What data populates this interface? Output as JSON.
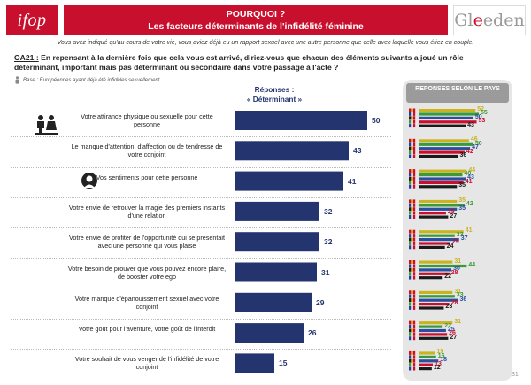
{
  "header": {
    "logo_left": "ifop",
    "title_line1": "POURQUOI ?",
    "title_line2": "Les facteurs déterminants de l'infidélité féminine",
    "logo_right_prefix": "Gl",
    "logo_right_accent": "e",
    "logo_right_suffix": "eden"
  },
  "intro": "Vous avez indiqué qu'au cours de votre vie, vous aviez déjà eu un rapport sexuel avec une autre personne que celle avec laquelle vous étiez en couple.",
  "question": {
    "id": "OA21 :",
    "text": "En repensant à la dernière fois que cela vous est arrivé, diriez-vous que chacun des éléments suivants a joué un rôle déterminant, important mais pas déterminant ou secondaire dans votre passage à l'acte ?"
  },
  "base": "Base : Européennes ayant déjà été infidèles sexuellement",
  "responses_header_line1": "Réponses :",
  "responses_header_line2": "« Déterminant »",
  "panel_header": "REPONSES SELON LE PAYS",
  "page_number": "31",
  "colors": {
    "bar": "#24346f",
    "title_bg": "#c8102e",
    "country": [
      "#c9b41f",
      "#3a9a3a",
      "#2a4ea0",
      "#c8102e",
      "#1a1a1a"
    ]
  },
  "chart_data": {
    "type": "bar",
    "orientation": "horizontal",
    "title": "",
    "categories": [
      "Votre attirance physique ou sexuelle pour cette personne",
      "Le manque d'attention, d'affection ou de tendresse de votre conjoint",
      "Vos sentiments pour cette personne",
      "Votre envie de retrouver la magie des premiers instants d'une relation",
      "Votre envie de profiter de l'opportunité qui se présentait avec une personne qui vous plaise",
      "Votre besoin de prouver que vous pouvez encore plaire, de booster votre ego",
      "Votre manque d'épanouissement sexuel avec votre conjoint",
      "Votre goût pour l'aventure, votre goût de l'interdit",
      "Votre souhait de vous venger de l'infidélité de votre conjoint"
    ],
    "values": [
      50,
      43,
      41,
      32,
      32,
      31,
      29,
      26,
      15
    ],
    "xlim": [
      0,
      50
    ],
    "country_series": [
      {
        "values": [
          52,
          55,
          50,
          53,
          43
        ]
      },
      {
        "values": [
          46,
          50,
          47,
          42,
          36
        ]
      },
      {
        "values": [
          44,
          40,
          43,
          41,
          35
        ]
      },
      {
        "values": [
          35,
          42,
          35,
          25,
          27
        ]
      },
      {
        "values": [
          41,
          33,
          37,
          29,
          24
        ]
      },
      {
        "values": [
          31,
          44,
          30,
          28,
          22
        ]
      },
      {
        "values": [
          31,
          33,
          36,
          28,
          23
        ]
      },
      {
        "values": [
          31,
          22,
          25,
          26,
          27
        ]
      },
      {
        "values": [
          15,
          16,
          18,
          13,
          12
        ]
      }
    ]
  }
}
